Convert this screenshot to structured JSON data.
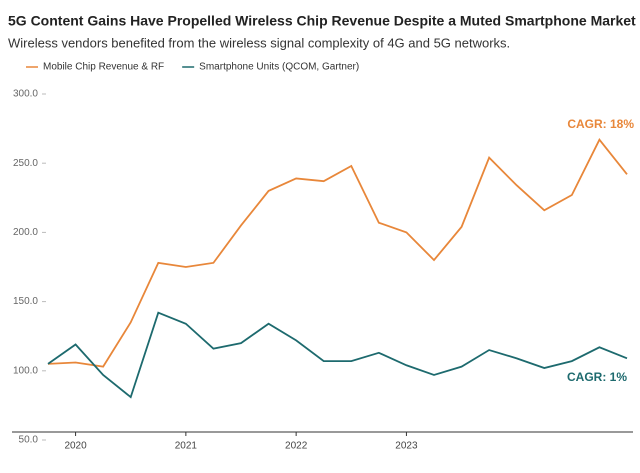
{
  "chart_data": {
    "type": "line",
    "title": "5G Content Gains Have Propelled Wireless Chip Revenue Despite a Muted Smartphone Market",
    "subtitle": "Wireless vendors benefited from the wireless signal complexity of 4G and 5G networks.",
    "x": [
      2019.75,
      2020,
      2020.25,
      2020.5,
      2020.75,
      2021,
      2021.25,
      2021.5,
      2021.75,
      2022,
      2022.25,
      2022.5,
      2022.75,
      2023,
      2023.25,
      2023.5,
      2023.75,
      2024,
      2024.25,
      2024.5,
      2024.75,
      2025
    ],
    "series": [
      {
        "name": "Mobile Chip Revenue & RF",
        "color": "#e8873a",
        "values": [
          105,
          106,
          103,
          135,
          178,
          175,
          178,
          205,
          230,
          239,
          237,
          248,
          207,
          200,
          180,
          204,
          254,
          234,
          216,
          227,
          267,
          242
        ]
      },
      {
        "name": "Smartphone Units (QCOM, Gartner)",
        "color": "#1d6a6e",
        "values": [
          105,
          119,
          97,
          81,
          142,
          134,
          116,
          120,
          134,
          122,
          107,
          107,
          113,
          104,
          97,
          103,
          115,
          109,
          102,
          107,
          117,
          109
        ]
      }
    ],
    "annotations": [
      "CAGR: 18%",
      "CAGR: 1%"
    ],
    "xlim": [
      2019.75,
      2025
    ],
    "xticks": [
      2020,
      2021,
      2022,
      2023
    ],
    "ylim": [
      50,
      300
    ],
    "yticks": [
      {
        "value": 50,
        "label": "50.0"
      },
      {
        "value": 100,
        "label": "100.0"
      },
      {
        "value": 150,
        "label": "150.0"
      },
      {
        "value": 200,
        "label": "200.0"
      },
      {
        "value": 250,
        "label": "250.0"
      },
      {
        "value": 300,
        "label": "300.0"
      }
    ],
    "grid": false
  }
}
